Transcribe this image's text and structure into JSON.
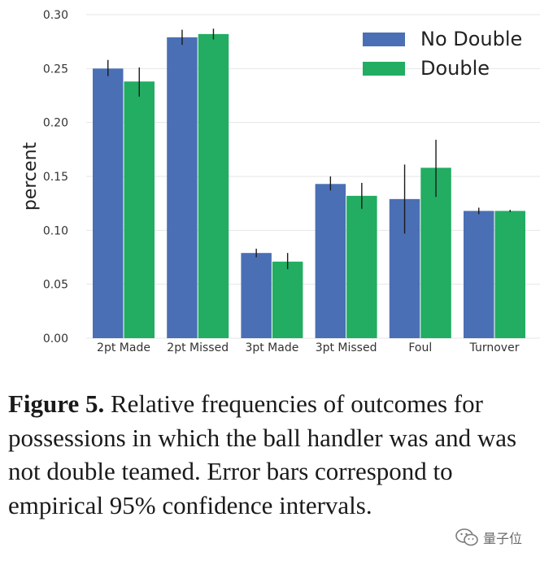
{
  "chart_data": {
    "type": "bar",
    "categories": [
      "2pt Made",
      "2pt Missed",
      "3pt Made",
      "3pt Missed",
      "Foul",
      "Turnover"
    ],
    "series": [
      {
        "name": "No Double",
        "color": "#4a6fb5",
        "values": [
          0.25,
          0.279,
          0.079,
          0.143,
          0.129,
          0.118
        ],
        "ci": [
          [
            0.243,
            0.258
          ],
          [
            0.272,
            0.286
          ],
          [
            0.075,
            0.083
          ],
          [
            0.137,
            0.15
          ],
          [
            0.097,
            0.161
          ],
          [
            0.115,
            0.121
          ]
        ]
      },
      {
        "name": "Double",
        "color": "#22ad62",
        "values": [
          0.238,
          0.282,
          0.071,
          0.132,
          0.158,
          0.118
        ],
        "ci": [
          [
            0.224,
            0.251
          ],
          [
            0.277,
            0.287
          ],
          [
            0.064,
            0.079
          ],
          [
            0.12,
            0.144
          ],
          [
            0.131,
            0.184
          ],
          [
            0.117,
            0.119
          ]
        ]
      }
    ],
    "ylabel": "percent",
    "ylim": [
      0,
      0.3
    ],
    "yticks": [
      "0.00",
      "0.05",
      "0.10",
      "0.15",
      "0.20",
      "0.25",
      "0.30"
    ],
    "grid": true,
    "legend": "top-right"
  },
  "caption": {
    "label": "Figure 5.",
    "text": " Relative frequencies of outcomes for possessions in which the ball handler was and was not double teamed. Error bars correspond to empirical 95% confidence intervals."
  },
  "watermark": {
    "text": "量子位",
    "icon": "wechat-icon"
  }
}
